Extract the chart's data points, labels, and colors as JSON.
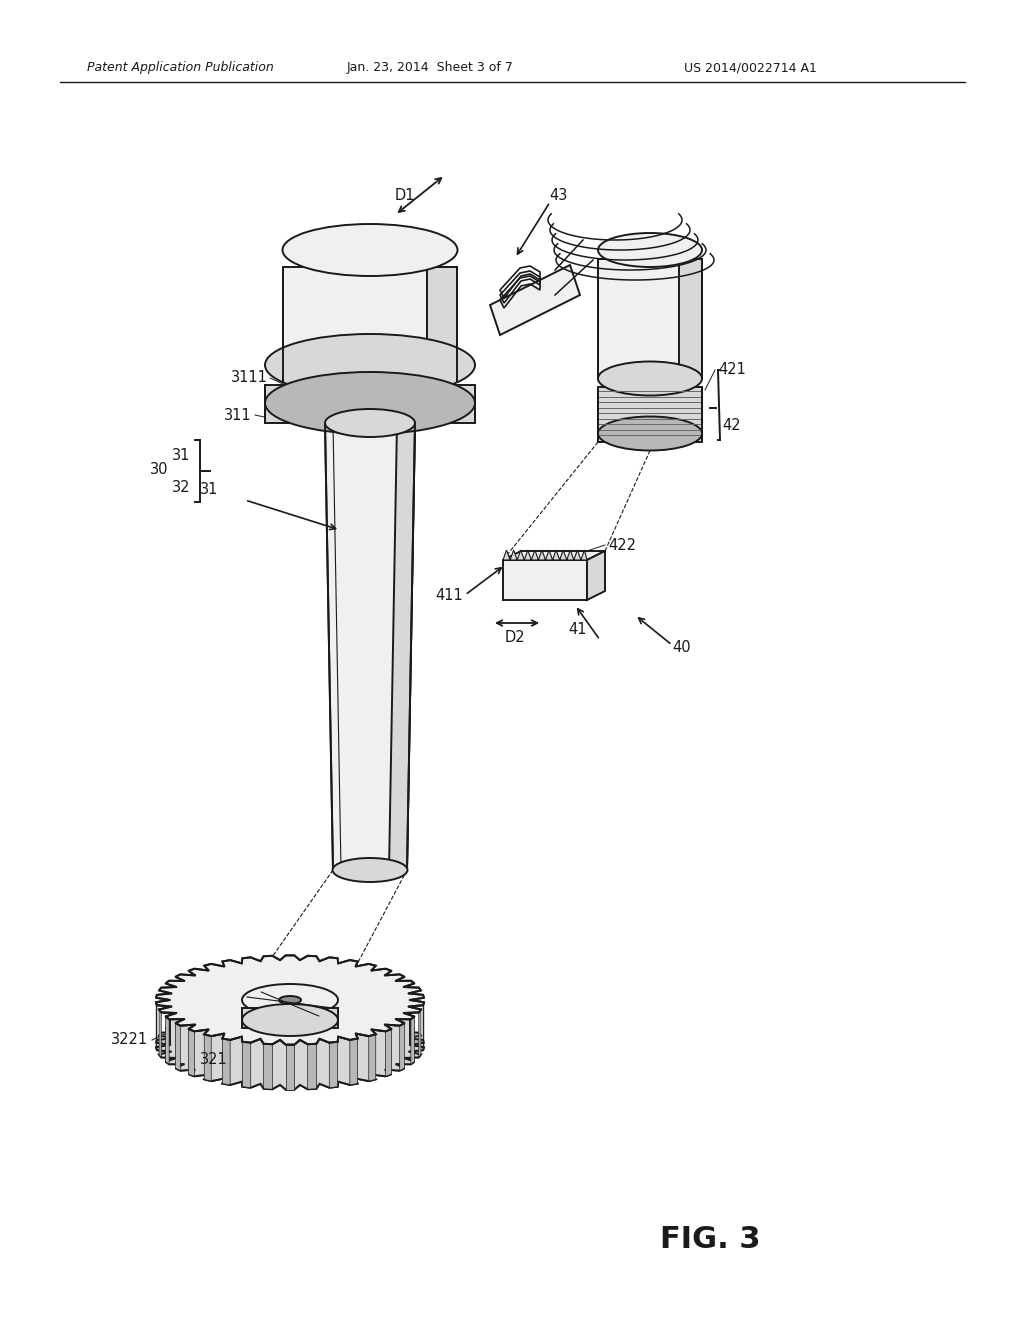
{
  "bg_color": "#ffffff",
  "header_left": "Patent Application Publication",
  "header_mid": "Jan. 23, 2014  Sheet 3 of 7",
  "header_right": "US 2014/0022714 A1",
  "figure_label": "FIG. 3",
  "line_color": "#1a1a1a",
  "fill_light": "#f0f0f0",
  "fill_mid": "#d8d8d8",
  "fill_dark": "#b8b8b8",
  "fill_darker": "#909090"
}
